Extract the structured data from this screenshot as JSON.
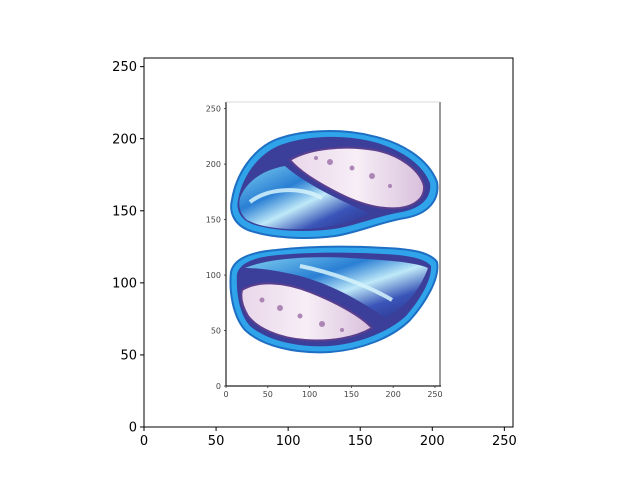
{
  "chart_data": {
    "type": "image",
    "xlim": [
      0,
      256
    ],
    "ylim": [
      256,
      0
    ],
    "x_ticks": [
      0,
      50,
      100,
      150,
      200,
      250
    ],
    "y_ticks": [
      0,
      50,
      100,
      150,
      200,
      250
    ],
    "x_tick_labels": [
      "0",
      "50",
      "100",
      "150",
      "200",
      "250"
    ],
    "y_tick_labels": [
      "0",
      "50",
      "100",
      "150",
      "200",
      "250"
    ],
    "inner_plot": {
      "xlim": [
        0,
        256
      ],
      "ylim": [
        256,
        0
      ],
      "x_ticks": [
        0,
        50,
        100,
        150,
        200,
        250
      ],
      "y_ticks": [
        0,
        50,
        100,
        150,
        200,
        250
      ],
      "x_tick_labels": [
        "0",
        "50",
        "100",
        "150",
        "200",
        "250"
      ],
      "y_tick_labels": [
        "0",
        "50",
        "100",
        "150",
        "200",
        "250"
      ]
    }
  },
  "colors": {
    "rim": "#2f9fe6",
    "dark_band": "#3b3f9a",
    "light_band": "#8fd6f2",
    "crystal": "#f0e4ef",
    "crystal_spot": "#9b6fa6"
  }
}
